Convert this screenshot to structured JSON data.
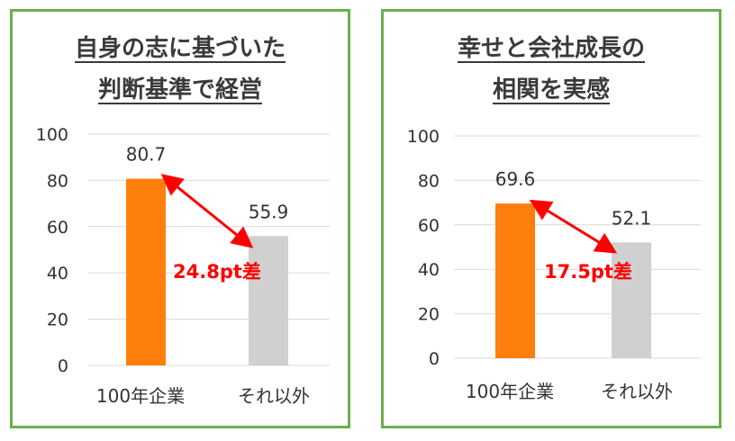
{
  "chart_data": [
    {
      "type": "bar",
      "title_lines": [
        "自身の志に基づいた",
        "判断基準で経営"
      ],
      "categories": [
        "100年企業",
        "それ以外"
      ],
      "values": [
        80.7,
        55.9
      ],
      "value_labels": [
        "80.7",
        "55.9"
      ],
      "ylim": [
        0,
        100
      ],
      "yticks": [
        "0",
        "20",
        "40",
        "60",
        "80",
        "100"
      ],
      "grid": true,
      "colors": [
        "#ff7f0e",
        "#d0d0d0"
      ],
      "annotation": "24.8pt差"
    },
    {
      "type": "bar",
      "title_lines": [
        "幸せと会社成長の",
        "相関を実感"
      ],
      "categories": [
        "100年企業",
        "それ以外"
      ],
      "values": [
        69.6,
        52.1
      ],
      "value_labels": [
        "69.6",
        "52.1"
      ],
      "ylim": [
        0,
        100
      ],
      "yticks": [
        "0",
        "20",
        "40",
        "60",
        "80",
        "100"
      ],
      "grid": true,
      "colors": [
        "#ff7f0e",
        "#d0d0d0"
      ],
      "annotation": "17.5pt差"
    }
  ],
  "colors": {
    "border": "#6ab04c",
    "arrow": "#ff0000",
    "grid": "#d9d9d9"
  }
}
